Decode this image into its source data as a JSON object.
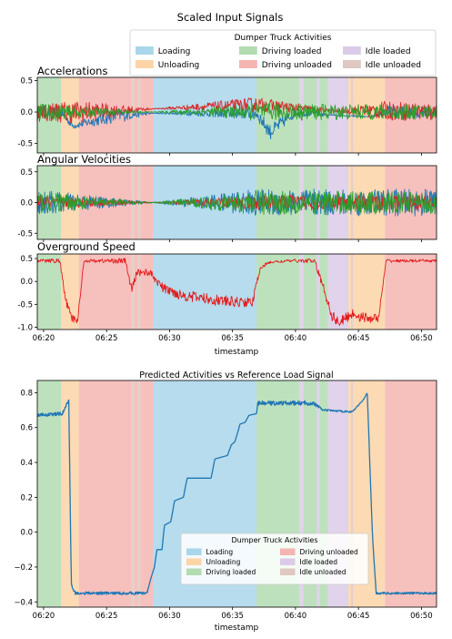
{
  "figure": {
    "suptitle": "Scaled Input Signals",
    "bottom_title": "Predicted Activities vs Reference Load Signal"
  },
  "legend": {
    "title": "Dumper Truck Activities",
    "entries": [
      {
        "key": "loading",
        "label": "Loading",
        "color": "#a9d6ea"
      },
      {
        "key": "unloading",
        "label": "Unloading",
        "color": "#fcd4a6"
      },
      {
        "key": "driving_loaded",
        "label": "Driving loaded",
        "color": "#b3dcb1"
      },
      {
        "key": "driving_unloaded",
        "label": "Driving unloaded",
        "color": "#f4b5b2"
      },
      {
        "key": "idle_loaded",
        "label": "Idle loaded",
        "color": "#dccbe8"
      },
      {
        "key": "idle_unloaded",
        "label": "Idle unloaded",
        "color": "#dfc8c1"
      }
    ]
  },
  "activity_segments": [
    {
      "start": "06:19.5",
      "end": "06:21.4",
      "activity": "driving_loaded"
    },
    {
      "start": "06:21.4",
      "end": "06:22.8",
      "activity": "unloading"
    },
    {
      "start": "06:22.8",
      "end": "06:27.0",
      "activity": "driving_unloaded"
    },
    {
      "start": "06:27.0",
      "end": "06:27.2",
      "activity": "idle_unloaded"
    },
    {
      "start": "06:27.2",
      "end": "06:27.5",
      "activity": "driving_unloaded"
    },
    {
      "start": "06:27.5",
      "end": "06:27.7",
      "activity": "idle_unloaded"
    },
    {
      "start": "06:27.7",
      "end": "06:28.7",
      "activity": "driving_unloaded"
    },
    {
      "start": "06:28.7",
      "end": "06:36.9",
      "activity": "loading"
    },
    {
      "start": "06:36.9",
      "end": "06:40.3",
      "activity": "driving_loaded"
    },
    {
      "start": "06:40.3",
      "end": "06:40.6",
      "activity": "idle_loaded"
    },
    {
      "start": "06:40.6",
      "end": "06:41.7",
      "activity": "driving_loaded"
    },
    {
      "start": "06:41.7",
      "end": "06:41.9",
      "activity": "idle_loaded"
    },
    {
      "start": "06:41.9",
      "end": "06:42.6",
      "activity": "driving_loaded"
    },
    {
      "start": "06:42.6",
      "end": "06:44.2",
      "activity": "idle_loaded"
    },
    {
      "start": "06:44.2",
      "end": "06:44.4",
      "activity": "unloading"
    },
    {
      "start": "06:44.4",
      "end": "06:44.6",
      "activity": "idle_unloaded"
    },
    {
      "start": "06:44.6",
      "end": "06:47.1",
      "activity": "unloading"
    },
    {
      "start": "06:47.1",
      "end": "06:51.2",
      "activity": "driving_unloaded"
    }
  ],
  "chart_data": [
    {
      "type": "line",
      "title": "Accelerations",
      "xlabel": "",
      "xlim": [
        "06:19.5",
        "06:51.2"
      ],
      "ylim": [
        -0.65,
        0.55
      ],
      "yticks": [
        0.5,
        0.0,
        -0.5
      ],
      "ytick_labels": [
        "0.5",
        "0.0",
        "-0.5"
      ],
      "grid": false,
      "series": [
        {
          "color": "#1f77b4",
          "x": [
            "06:19.5",
            "06:21.4",
            "06:22.3",
            "06:26.0",
            "06:28.7",
            "06:36.9",
            "06:38.0",
            "06:40.0",
            "06:43.0",
            "06:46.0",
            "06:47.1",
            "06:51.2"
          ],
          "y": [
            0.0,
            0.0,
            -0.22,
            -0.05,
            -0.02,
            -0.02,
            -0.32,
            0.0,
            -0.05,
            -0.08,
            0.0,
            0.0
          ],
          "noise": [
            0.1,
            0.08,
            0.05,
            0.12,
            0.004,
            0.1,
            0.12,
            0.08,
            0.01,
            0.01,
            0.1,
            0.1
          ]
        },
        {
          "color": "#d62728",
          "x": [
            "06:19.5",
            "06:22.8",
            "06:28.7",
            "06:36.9",
            "06:43.0",
            "06:47.1",
            "06:51.2"
          ],
          "y": [
            0.0,
            0.0,
            0.05,
            0.12,
            0.02,
            0.02,
            0.0
          ],
          "noise": [
            0.15,
            0.18,
            0.004,
            0.12,
            0.02,
            0.15,
            0.15
          ]
        },
        {
          "color": "#2ca02c",
          "x": [
            "06:19.5",
            "06:28.7",
            "06:36.9",
            "06:47.1",
            "06:51.2"
          ],
          "y": [
            0.0,
            0.0,
            0.0,
            0.0,
            0.0
          ],
          "noise": [
            0.14,
            0.003,
            0.14,
            0.12,
            0.12
          ]
        }
      ]
    },
    {
      "type": "line",
      "title": "Angular Velocities",
      "xlabel": "",
      "xlim": [
        "06:19.5",
        "06:51.2"
      ],
      "ylim": [
        -0.6,
        0.6
      ],
      "yticks": [
        0.5,
        0.0,
        -0.5
      ],
      "ytick_labels": [
        "0.5",
        "0.0",
        "-0.5"
      ],
      "grid": false,
      "series": [
        {
          "color": "#1f77b4",
          "x": [
            "06:19.5",
            "06:28.7",
            "06:36.9",
            "06:51.2"
          ],
          "y": [
            0.0,
            0.0,
            0.0,
            0.0
          ],
          "noise": [
            0.22,
            0.004,
            0.22,
            0.22
          ]
        },
        {
          "color": "#d62728",
          "x": [
            "06:19.5",
            "06:28.7",
            "06:36.9",
            "06:51.2"
          ],
          "y": [
            0.0,
            0.0,
            0.0,
            0.0
          ],
          "noise": [
            0.12,
            0.004,
            0.12,
            0.12
          ]
        },
        {
          "color": "#2ca02c",
          "x": [
            "06:19.5",
            "06:28.7",
            "06:36.9",
            "06:51.2"
          ],
          "y": [
            0.0,
            0.0,
            0.0,
            0.0
          ],
          "noise": [
            0.18,
            0.004,
            0.2,
            0.18
          ]
        }
      ]
    },
    {
      "type": "line",
      "title": "Overground Speed",
      "xlabel": "timestamp",
      "xlim": [
        "06:19.5",
        "06:51.2"
      ],
      "ylim": [
        -1.05,
        0.6
      ],
      "yticks": [
        0.5,
        0.0,
        -0.5,
        -1.0
      ],
      "ytick_labels": [
        "0.5",
        "0.0",
        "-0.5",
        "-1.0"
      ],
      "xticks": [
        "06:20",
        "06:25",
        "06:30",
        "06:35",
        "06:40",
        "06:45",
        "06:50"
      ],
      "grid": false,
      "series": [
        {
          "color": "#e31a1c",
          "x": [
            "06:19.5",
            "06:21.3",
            "06:21.7",
            "06:22.2",
            "06:22.7",
            "06:23.2",
            "06:26.5",
            "06:27.0",
            "06:27.4",
            "06:28.4",
            "06:29.5",
            "06:31",
            "06:33",
            "06:35",
            "06:36.6",
            "06:37.2",
            "06:38",
            "06:39.5",
            "06:41.5",
            "06:42.3",
            "06:42.9",
            "06:43.5",
            "06:44.5",
            "06:45.5",
            "06:46.6",
            "06:47.2",
            "06:48",
            "06:51.2"
          ],
          "y": [
            0.45,
            0.45,
            -0.35,
            -0.8,
            -0.85,
            0.45,
            0.45,
            -0.2,
            0.2,
            0.2,
            -0.15,
            -0.3,
            -0.38,
            -0.45,
            -0.45,
            0.3,
            0.42,
            0.45,
            0.45,
            -0.2,
            -0.75,
            -0.9,
            -0.7,
            -0.8,
            -0.8,
            0.45,
            0.45,
            0.45
          ],
          "noise": [
            0.03,
            0.05,
            0.08,
            0.08,
            0.08,
            0.03,
            0.06,
            0.1,
            0.08,
            0.08,
            0.1,
            0.12,
            0.12,
            0.12,
            0.1,
            0.05,
            0.03,
            0.03,
            0.05,
            0.1,
            0.12,
            0.12,
            0.12,
            0.12,
            0.08,
            0.04,
            0.03,
            0.03
          ]
        }
      ]
    },
    {
      "type": "line",
      "title": "Predicted Activities vs Reference Load Signal",
      "xlabel": "timestamp",
      "xlim": [
        "06:19.5",
        "06:51.2"
      ],
      "ylim": [
        -0.43,
        0.87
      ],
      "yticks": [
        0.8,
        0.6,
        0.4,
        0.2,
        0.0,
        -0.2,
        -0.4
      ],
      "ytick_labels": [
        "0.8",
        "0.6",
        "0.4",
        "0.2",
        "0.0",
        "−0.2",
        "−0.4"
      ],
      "xticks": [
        "06:20",
        "06:25",
        "06:30",
        "06:35",
        "06:40",
        "06:45",
        "06:50"
      ],
      "grid": false,
      "series": [
        {
          "color": "#1f77b4",
          "x": [
            "06:19.5",
            "06:21.5",
            "06:22.0",
            "06:22.2",
            "06:22.5",
            "06:28.2",
            "06:28.5",
            "06:28.8",
            "06:29.0",
            "06:29.4",
            "06:29.6",
            "06:30.1",
            "06:30.4",
            "06:31.1",
            "06:31.4",
            "06:33.3",
            "06:33.6",
            "06:34.6",
            "06:34.9",
            "06:35.2",
            "06:35.6",
            "06:36.0",
            "06:36.3",
            "06:36.9",
            "06:37.0",
            "06:41.4",
            "06:42.2",
            "06:44.5",
            "06:45.4",
            "06:45.7",
            "06:46.1",
            "06:46.4",
            "06:51.2"
          ],
          "y": [
            0.67,
            0.68,
            0.76,
            -0.3,
            -0.35,
            -0.35,
            -0.27,
            -0.2,
            -0.1,
            -0.1,
            0.04,
            0.06,
            0.18,
            0.2,
            0.31,
            0.31,
            0.42,
            0.44,
            0.5,
            0.52,
            0.62,
            0.63,
            0.67,
            0.68,
            0.74,
            0.74,
            0.7,
            0.69,
            0.76,
            0.8,
            0.0,
            -0.35,
            -0.35
          ],
          "noise": [
            0.01,
            0.01,
            0.01,
            0.01,
            0.008,
            0.008,
            0.0,
            0.0,
            0.0,
            0.0,
            0.0,
            0.0,
            0.0,
            0.0,
            0.0,
            0.0,
            0.0,
            0.0,
            0.0,
            0.0,
            0.0,
            0.0,
            0.0,
            0.0,
            0.012,
            0.012,
            0.005,
            0.005,
            0.0,
            0.0,
            0.0,
            0.006,
            0.006
          ]
        }
      ]
    }
  ]
}
